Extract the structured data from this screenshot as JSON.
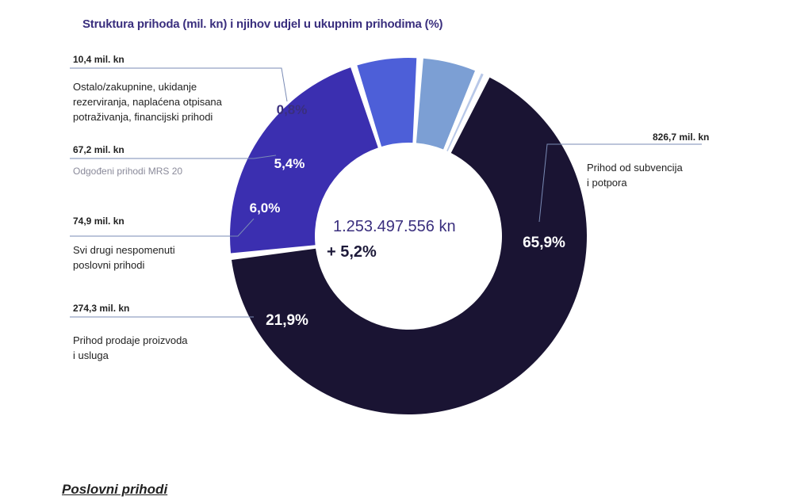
{
  "chart_data": {
    "type": "pie",
    "title": "Struktura prihoda (mil. kn) i njihov udjel u ukupnim prihodima (%)",
    "center": {
      "total": "1.253.497.556 kn",
      "growth": "+ 5,2%"
    },
    "slices": [
      {
        "label": "Prihod od subvencija i potpora",
        "value": 826.7,
        "value_label": "826,7 mil. kn",
        "percent": 65.9,
        "percent_label": "65,9%",
        "color": "#1a1433",
        "text_color": "#ffffff"
      },
      {
        "label": "Prihod prodaje proizvoda i usluga",
        "value": 274.3,
        "value_label": "274,3 mil. kn",
        "percent": 21.9,
        "percent_label": "21,9%",
        "color": "#3b2fb0",
        "text_color": "#ffffff"
      },
      {
        "label": "Svi drugi nespomenuti poslovni prihodi",
        "value": 74.9,
        "value_label": "74,9 mil. kn",
        "percent": 6.0,
        "percent_label": "6,0%",
        "color": "#4d5fd8",
        "text_color": "#ffffff"
      },
      {
        "label": "Odgođeni prihodi MRS 20",
        "value": 67.2,
        "value_label": "67,2 mil. kn",
        "percent": 5.4,
        "percent_label": "5,4%",
        "color": "#7c9fd4",
        "text_color": "#ffffff"
      },
      {
        "label": "Ostalo/zakupnine, ukidanje rezerviranja, naplaćena otpisana potraživanja, financijski prihodi",
        "value": 10.4,
        "value_label": "10,4 mil. kn",
        "percent": 0.8,
        "percent_label": "0,8%",
        "color": "#b8c8e8",
        "text_color": "#3a2f7e"
      }
    ]
  },
  "labels": {
    "subv_value": "826,7 mil. kn",
    "subv_line1": "Prihod od subvencija",
    "subv_line2": "i potpora",
    "ostalo_value": "10,4 mil. kn",
    "ostalo_line1": "Ostalo/zakupnine, ukidanje",
    "ostalo_line2": "rezerviranja, naplaćena otpisana",
    "ostalo_line3": "potraživanja, financijski prihodi",
    "odg_value": "67,2 mil. kn",
    "odg_line1": "Odgođeni prihodi MRS 20",
    "svi_value": "74,9 mil. kn",
    "svi_line1": "Svi drugi nespomenuti",
    "svi_line2": "poslovni prihodi",
    "prodaja_value": "274,3 mil. kn",
    "prodaja_line1": "Prihod prodaje proizvoda",
    "prodaja_line2": "i usluga"
  },
  "section_heading": "Poslovni prihodi"
}
